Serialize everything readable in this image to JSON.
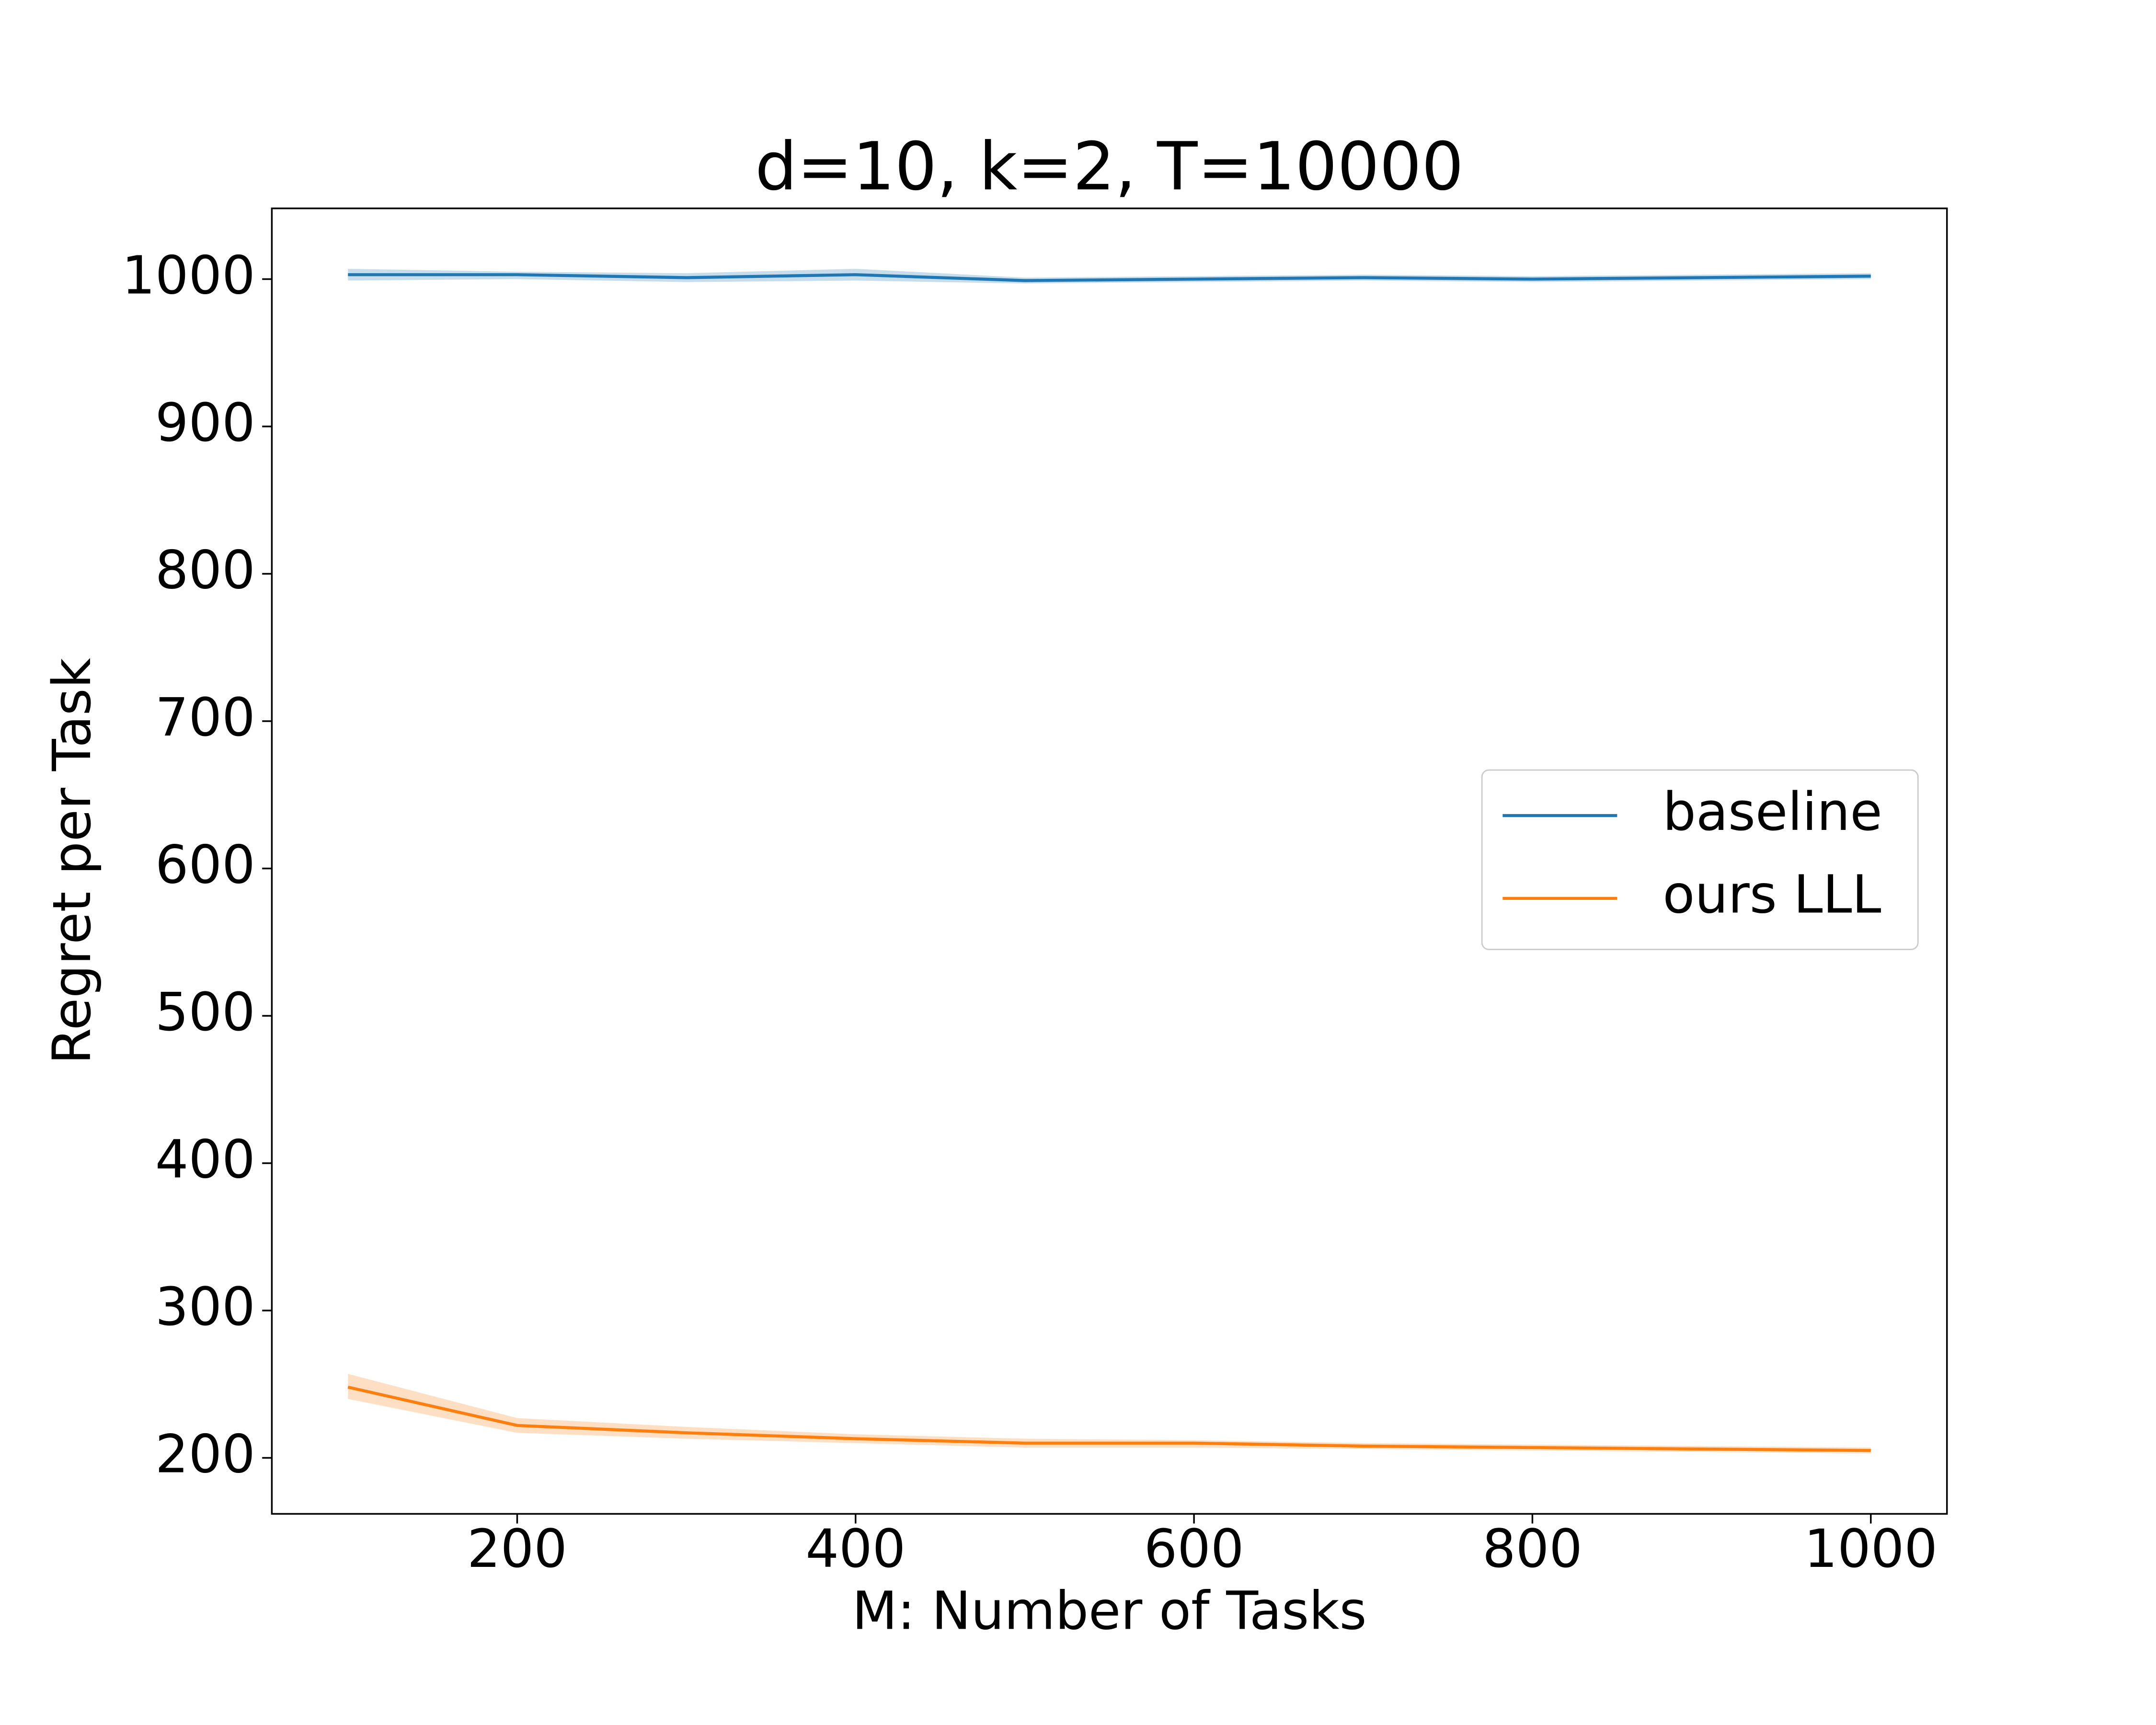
{
  "chart_data": {
    "type": "line",
    "title": "d=10, k=2, T=10000",
    "x_label": "M: Number of Tasks",
    "y_label": "Regret per Task",
    "x": [
      100,
      200,
      300,
      400,
      500,
      600,
      700,
      800,
      900,
      1000
    ],
    "series": [
      {
        "name": "baseline",
        "color": "#1f77b4",
        "values": [
          1003,
          1003,
          1001,
          1003,
          999,
          1000,
          1001,
          1000,
          1001,
          1002
        ],
        "lower": [
          999,
          1000,
          998,
          999,
          997,
          998,
          999,
          998,
          999,
          1000
        ],
        "upper": [
          1007,
          1005,
          1004,
          1007,
          1001,
          1002,
          1003,
          1002,
          1003,
          1004
        ]
      },
      {
        "name": "ours LLL",
        "color": "#ff7f0e",
        "values": [
          248,
          222,
          217,
          213,
          210,
          210,
          208,
          207,
          206,
          205
        ],
        "lower": [
          240,
          217,
          213,
          210,
          207,
          207,
          206,
          205,
          204,
          203
        ],
        "upper": [
          257,
          227,
          221,
          216,
          213,
          212,
          210,
          209,
          208,
          207
        ]
      }
    ],
    "xlim": [
      55,
      1045
    ],
    "ylim": [
      162,
      1048
    ],
    "xticks": [
      200,
      400,
      600,
      800,
      1000
    ],
    "yticks": [
      200,
      300,
      400,
      500,
      600,
      700,
      800,
      900,
      1000
    ],
    "grid": false,
    "legend": "right"
  }
}
